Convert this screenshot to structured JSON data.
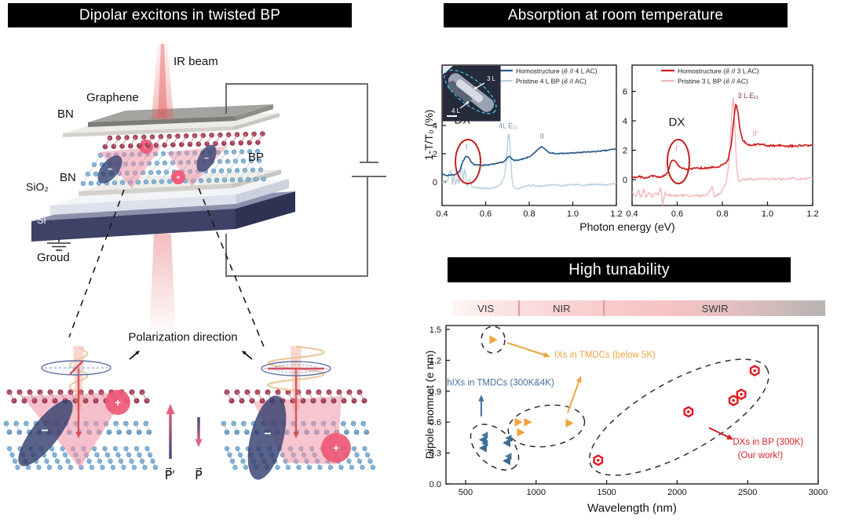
{
  "panels": {
    "device": {
      "title": "Dipolar excitons in twisted BP",
      "labels": {
        "ir_beam": "IR beam",
        "graphene": "Graphene",
        "bn_top": "BN",
        "bp": "BP",
        "bn_bottom": "BN",
        "sio2": "SiO₂",
        "si": "Si",
        "ground": "Groud",
        "polarization": "Polarization direction",
        "p_prime": "P⃗′",
        "p": "P⃗",
        "plus": "+",
        "minus": "−"
      }
    },
    "absorption": {
      "title": "Absorption at room temperature",
      "xlabel": "Photon energy (eV)",
      "ylabel": "1-T/T₀ (%)"
    },
    "tunability": {
      "title": "High tunability",
      "xlabel": "Wavelength (nm)",
      "ylabel": "Dipole momnet (e nm)",
      "bands": [
        "VIS",
        "NIR",
        "SWIR"
      ],
      "band_boundaries_nm": [
        890,
        1490
      ]
    }
  },
  "chart_data": [
    {
      "type": "line",
      "id": "spectrum-4L-homostructure",
      "xlabel": "Photon energy (eV)",
      "ylabel": "1-T/T₀ (%)",
      "x_range": [
        0.4,
        1.2
      ],
      "y_range": [
        -1.67,
        8.28
      ],
      "xticks": [
        "0.4",
        "0.6",
        "0.8",
        "1.0",
        "1.2"
      ],
      "yticks": [
        "0",
        "2",
        "4"
      ],
      "legend_position": "top-right",
      "series": [
        {
          "name": "Homostructure (e⃗ // 4 L AC)",
          "color": "#2d5e8c",
          "width": 1.7,
          "noise": 0.035,
          "points": [
            [
              0.4,
              0.55
            ],
            [
              0.42,
              0.45
            ],
            [
              0.44,
              0.5
            ],
            [
              0.46,
              0.52
            ],
            [
              0.48,
              0.75
            ],
            [
              0.495,
              1.45
            ],
            [
              0.51,
              1.82
            ],
            [
              0.52,
              1.75
            ],
            [
              0.535,
              1.4
            ],
            [
              0.55,
              1.22
            ],
            [
              0.58,
              1.18
            ],
            [
              0.62,
              1.22
            ],
            [
              0.66,
              1.32
            ],
            [
              0.685,
              1.45
            ],
            [
              0.7,
              1.7
            ],
            [
              0.71,
              1.82
            ],
            [
              0.72,
              1.62
            ],
            [
              0.74,
              1.52
            ],
            [
              0.77,
              1.6
            ],
            [
              0.8,
              1.78
            ],
            [
              0.825,
              2.05
            ],
            [
              0.85,
              2.45
            ],
            [
              0.86,
              2.48
            ],
            [
              0.875,
              2.3
            ],
            [
              0.89,
              2.1
            ],
            [
              0.92,
              2.0
            ],
            [
              0.96,
              2.02
            ],
            [
              1.0,
              2.05
            ],
            [
              1.05,
              2.1
            ],
            [
              1.1,
              2.15
            ],
            [
              1.15,
              2.22
            ],
            [
              1.2,
              2.35
            ]
          ]
        },
        {
          "name": "Pristine 4 L BP (e⃗ // AC)",
          "color": "#b9cfdd",
          "width": 1.4,
          "noise": 0.06,
          "points": [
            [
              0.4,
              -0.05
            ],
            [
              0.425,
              0.1
            ],
            [
              0.44,
              0.9
            ],
            [
              0.448,
              -0.3
            ],
            [
              0.455,
              0.6
            ],
            [
              0.462,
              -0.25
            ],
            [
              0.47,
              0.35
            ],
            [
              0.478,
              -0.2
            ],
            [
              0.488,
              1.35
            ],
            [
              0.497,
              0.1
            ],
            [
              0.505,
              0.95
            ],
            [
              0.515,
              -0.35
            ],
            [
              0.525,
              0.25
            ],
            [
              0.535,
              -0.3
            ],
            [
              0.55,
              -0.4
            ],
            [
              0.59,
              -0.45
            ],
            [
              0.63,
              -0.45
            ],
            [
              0.665,
              -0.25
            ],
            [
              0.685,
              0.3
            ],
            [
              0.697,
              1.8
            ],
            [
              0.703,
              3.3
            ],
            [
              0.708,
              3.45
            ],
            [
              0.715,
              1.8
            ],
            [
              0.722,
              -0.1
            ],
            [
              0.73,
              -0.45
            ],
            [
              0.75,
              -0.5
            ],
            [
              0.78,
              -0.3
            ],
            [
              0.82,
              -0.25
            ],
            [
              0.86,
              -0.3
            ],
            [
              0.9,
              -0.2
            ],
            [
              0.95,
              -0.25
            ],
            [
              1.0,
              -0.18
            ],
            [
              1.05,
              -0.22
            ],
            [
              1.1,
              -0.15
            ],
            [
              1.15,
              -0.2
            ],
            [
              1.2,
              -0.1
            ]
          ]
        }
      ],
      "annotations": [
        {
          "t": "DX",
          "x": 0.493,
          "y": 4.15,
          "c": "#1a1a1a",
          "s": 15,
          "a": "middle"
        },
        {
          "t": "I",
          "x": 0.512,
          "y": 2.3,
          "c": "#7d93a8",
          "s": 10,
          "a": "middle"
        },
        {
          "t": "4L E₁₁",
          "x": 0.703,
          "y": 3.8,
          "c": "#7d93a8",
          "s": 9,
          "a": "middle"
        },
        {
          "t": "II",
          "x": 0.858,
          "y": 3.05,
          "c": "#7d93a8",
          "s": 10,
          "a": "middle"
        }
      ],
      "ellipses": [
        {
          "cx": 0.519,
          "cy": 1.44,
          "rx": 16,
          "ry": 28,
          "rot": 0,
          "c": "#c41f1f",
          "dash": false
        }
      ],
      "inset": {
        "labels": [
          "3 L",
          "4 L"
        ]
      }
    },
    {
      "type": "line",
      "id": "spectrum-3L-homostructure",
      "xlabel": "Photon energy (eV)",
      "ylabel": "1-T/T₀ (%)",
      "x_range": [
        0.4,
        1.2
      ],
      "y_range": [
        -1.76,
        7.79
      ],
      "xticks": [
        "0.4",
        "0.6",
        "0.8",
        "1.0",
        "1.2"
      ],
      "yticks": [
        "0",
        "2",
        "4",
        "6"
      ],
      "legend_position": "top-right",
      "series": [
        {
          "name": "Homostructure (e⃗ // 3 L AC)",
          "color": "#d01f1f",
          "width": 1.7,
          "noise": 0.06,
          "points": [
            [
              0.4,
              0.15
            ],
            [
              0.43,
              0.22
            ],
            [
              0.46,
              0.12
            ],
            [
              0.49,
              0.25
            ],
            [
              0.52,
              0.18
            ],
            [
              0.545,
              0.28
            ],
            [
              0.557,
              0.45
            ],
            [
              0.572,
              1.15
            ],
            [
              0.582,
              1.38
            ],
            [
              0.592,
              1.25
            ],
            [
              0.605,
              0.95
            ],
            [
              0.62,
              0.78
            ],
            [
              0.64,
              0.72
            ],
            [
              0.67,
              0.75
            ],
            [
              0.7,
              0.78
            ],
            [
              0.74,
              0.8
            ],
            [
              0.78,
              0.88
            ],
            [
              0.805,
              1.0
            ],
            [
              0.825,
              1.35
            ],
            [
              0.84,
              2.4
            ],
            [
              0.852,
              4.3
            ],
            [
              0.86,
              5.15
            ],
            [
              0.868,
              4.7
            ],
            [
              0.878,
              3.4
            ],
            [
              0.89,
              2.7
            ],
            [
              0.905,
              2.45
            ],
            [
              0.925,
              2.35
            ],
            [
              0.95,
              2.38
            ],
            [
              0.975,
              2.42
            ],
            [
              1.0,
              2.3
            ],
            [
              1.05,
              2.32
            ],
            [
              1.1,
              2.28
            ],
            [
              1.15,
              2.32
            ],
            [
              1.2,
              2.35
            ]
          ]
        },
        {
          "name": "Pristine 3 L BP (e⃗ // AC)",
          "color": "#f2b6ba",
          "width": 1.4,
          "noise": 0.07,
          "points": [
            [
              0.4,
              -0.85
            ],
            [
              0.415,
              -1.15
            ],
            [
              0.428,
              -0.75
            ],
            [
              0.44,
              -1.2
            ],
            [
              0.452,
              -0.7
            ],
            [
              0.462,
              -1.25
            ],
            [
              0.475,
              -0.85
            ],
            [
              0.49,
              -1.15
            ],
            [
              0.503,
              -0.8
            ],
            [
              0.515,
              -1.1
            ],
            [
              0.528,
              -0.5
            ],
            [
              0.536,
              -1.9
            ],
            [
              0.544,
              -0.9
            ],
            [
              0.56,
              -1.05
            ],
            [
              0.6,
              -1.1
            ],
            [
              0.65,
              -1.08
            ],
            [
              0.7,
              -1.12
            ],
            [
              0.735,
              -1.0
            ],
            [
              0.755,
              -0.45
            ],
            [
              0.765,
              -1.15
            ],
            [
              0.79,
              -0.95
            ],
            [
              0.815,
              -0.3
            ],
            [
              0.83,
              1.2
            ],
            [
              0.842,
              4.6
            ],
            [
              0.848,
              5.85
            ],
            [
              0.856,
              3.2
            ],
            [
              0.864,
              0.6
            ],
            [
              0.873,
              -0.15
            ],
            [
              0.89,
              0.0
            ],
            [
              0.92,
              0.05
            ],
            [
              0.95,
              0.0
            ],
            [
              1.0,
              0.08
            ],
            [
              1.05,
              0.03
            ],
            [
              1.1,
              0.1
            ],
            [
              1.15,
              0.05
            ],
            [
              1.2,
              0.1
            ]
          ]
        }
      ],
      "annotations": [
        {
          "t": "DX",
          "x": 0.598,
          "y": 3.65,
          "c": "#1a1a1a",
          "s": 15,
          "a": "middle"
        },
        {
          "t": "I′",
          "x": 0.6,
          "y": 1.95,
          "c": "#e89898",
          "s": 10,
          "a": "middle"
        },
        {
          "t": "3 L E₁₁",
          "x": 0.868,
          "y": 5.55,
          "c": "#8b3030",
          "s": 9,
          "a": "start"
        },
        {
          "t": "II′",
          "x": 0.946,
          "y": 2.95,
          "c": "#e89898",
          "s": 10,
          "a": "middle"
        }
      ],
      "ellipses": [
        {
          "cx": 0.605,
          "cy": 1.23,
          "rx": 14,
          "ry": 28,
          "rot": 0,
          "c": "#c41f1f",
          "dash": false
        }
      ]
    },
    {
      "type": "scatter",
      "id": "dipole-moment-vs-wavelength",
      "xlabel": "Wavelength (nm)",
      "ylabel": "Dipole momnet (e nm)",
      "x_range": [
        361,
        3000
      ],
      "y_range": [
        0,
        1.538
      ],
      "xticks": [
        "500",
        "1000",
        "1500",
        "2000",
        "2500",
        "3000"
      ],
      "yticks": [
        "0.0",
        "0.3",
        "0.6",
        "0.9",
        "1.2",
        "1.5"
      ],
      "series": [
        {
          "name": "IXs in TMDCs (below 5K)",
          "marker": "triangle-right",
          "color": "#f0a33c",
          "points": [
            [
              695,
              1.4
            ],
            [
              873,
              0.6
            ],
            [
              940,
              0.6
            ],
            [
              890,
              0.5
            ],
            [
              1235,
              0.59
            ]
          ]
        },
        {
          "name": "hIXs in TMDCs (300K&4K)",
          "marker": "triangle-left-double",
          "color": "#3c6b93",
          "points": [
            [
              622,
              0.44
            ],
            [
              622,
              0.36
            ],
            [
              790,
              0.41
            ],
            [
              790,
              0.235
            ]
          ]
        },
        {
          "name": "DXs in BP (300K) (Our work!)",
          "marker": "hexagon-dot",
          "color": "#e0181f",
          "points": [
            [
              1440,
              0.23
            ],
            [
              2080,
              0.7
            ],
            [
              2400,
              0.81
            ],
            [
              2455,
              0.87
            ],
            [
              2550,
              1.1
            ]
          ]
        }
      ],
      "annotations": [
        {
          "t": "IXs in TMDCs (below 5K)",
          "x": 1129,
          "y": 1.225,
          "c": "#eda43f",
          "s": 11.5,
          "a": "start"
        },
        {
          "t": "hIXs in TMDCs (300K&4K)",
          "x": 368,
          "y": 0.955,
          "c": "#41719c",
          "s": 11.5,
          "a": "start"
        },
        {
          "t": "DXs in BP (300K)",
          "x": 2395,
          "y": 0.38,
          "c": "#d8232a",
          "s": 11.5,
          "a": "start"
        },
        {
          "t": "(Our work!)",
          "x": 2430,
          "y": 0.25,
          "c": "#d8232a",
          "s": 11.5,
          "a": "start"
        }
      ],
      "arrows": [
        {
          "x1": 795,
          "y1": 1.37,
          "x2": 1100,
          "y2": 1.235,
          "c": "#eda43f"
        },
        {
          "x1": 1224,
          "y1": 0.69,
          "x2": 1318,
          "y2": 1.05,
          "c": "#eda43f"
        },
        {
          "x1": 611,
          "y1": 0.655,
          "x2": 611,
          "y2": 0.865,
          "c": "#41719c"
        },
        {
          "x1": 2226,
          "y1": 0.545,
          "x2": 2400,
          "y2": 0.43,
          "c": "#d8232a"
        }
      ],
      "ellipses": [
        {
          "cx": 695,
          "cy": 1.4,
          "rx": 15,
          "ry": 17,
          "rot": 0,
          "c": "#2e2e2e",
          "dash": true
        },
        {
          "cx": 706,
          "cy": 0.357,
          "rx": 36,
          "ry": 22,
          "rot": 42,
          "c": "#2e2e2e",
          "dash": true
        },
        {
          "cx": 1073,
          "cy": 0.563,
          "rx": 49,
          "ry": 26,
          "rot": -8,
          "c": "#2e2e2e",
          "dash": true
        },
        {
          "cx": 2014,
          "cy": 0.647,
          "rx": 128,
          "ry": 46,
          "rot": -29,
          "c": "#2e2e2e",
          "dash": true
        }
      ]
    }
  ]
}
